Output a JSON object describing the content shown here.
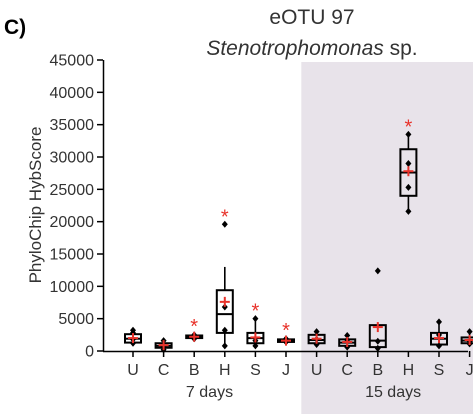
{
  "panel_label": "C)",
  "chart_data": {
    "type": "box",
    "title": "eOTU 97",
    "subtitle_italic": "Stenotrophomonas",
    "subtitle_rest": " sp.",
    "ylabel": "PhyloChip HybScore",
    "xlabel": "",
    "ylim": [
      0,
      45000
    ],
    "yticks": [
      0,
      5000,
      10000,
      15000,
      20000,
      25000,
      30000,
      35000,
      40000,
      45000
    ],
    "grid": false,
    "colors": {
      "box": "#000000",
      "median": "#000000",
      "mean_marker": "#e8322a",
      "significance": "#e8322a",
      "shaded_region": "#e8e3ea"
    },
    "groups": [
      {
        "label": "7 days",
        "shaded": false
      },
      {
        "label": "15 days",
        "shaded": true
      }
    ],
    "categories": [
      {
        "label": "U",
        "group": 0,
        "whisker_low": 1000,
        "q1": 1300,
        "median": 1900,
        "q3": 2600,
        "whisker_high": 3000,
        "mean": 2000,
        "points": [
          1200,
          1800,
          2800,
          3200
        ],
        "significant": false
      },
      {
        "label": "C",
        "group": 0,
        "whisker_low": 300,
        "q1": 500,
        "median": 800,
        "q3": 1200,
        "whisker_high": 1500,
        "mean": 900,
        "points": [
          200,
          700,
          1600
        ],
        "significant": false
      },
      {
        "label": "B",
        "group": 0,
        "whisker_low": 1900,
        "q1": 2000,
        "median": 2200,
        "q3": 2400,
        "whisker_high": 2600,
        "mean": 2200,
        "points": [
          1900,
          2500
        ],
        "significant": true
      },
      {
        "label": "H",
        "group": 0,
        "whisker_low": 800,
        "q1": 2800,
        "median": 5700,
        "q3": 9400,
        "whisker_high": 13000,
        "mean": 7600,
        "points": [
          800,
          3200,
          6800,
          19600
        ],
        "significant": true
      },
      {
        "label": "S",
        "group": 0,
        "whisker_low": 800,
        "q1": 1200,
        "median": 2000,
        "q3": 2800,
        "whisker_high": 5000,
        "mean": 2100,
        "points": [
          800,
          1600,
          5000
        ],
        "significant": true
      },
      {
        "label": "J",
        "group": 0,
        "whisker_low": 1200,
        "q1": 1400,
        "median": 1600,
        "q3": 1800,
        "whisker_high": 2000,
        "mean": 1600,
        "points": [
          1400,
          1900
        ],
        "significant": true
      },
      {
        "label": "U",
        "group": 1,
        "whisker_low": 900,
        "q1": 1200,
        "median": 1700,
        "q3": 2500,
        "whisker_high": 3000,
        "mean": 1900,
        "points": [
          1000,
          1800,
          3000
        ],
        "significant": false
      },
      {
        "label": "C",
        "group": 1,
        "whisker_low": 500,
        "q1": 800,
        "median": 1300,
        "q3": 1800,
        "whisker_high": 2500,
        "mean": 1400,
        "points": [
          600,
          1700,
          2400
        ],
        "significant": false
      },
      {
        "label": "B",
        "group": 1,
        "whisker_low": 300,
        "q1": 600,
        "median": 1600,
        "q3": 4000,
        "whisker_high": 4300,
        "mean": 3700,
        "points": [
          400,
          1500,
          12400
        ],
        "significant": false
      },
      {
        "label": "H",
        "group": 1,
        "whisker_low": 21500,
        "q1": 24000,
        "median": 27600,
        "q3": 31200,
        "whisker_high": 33500,
        "mean": 27800,
        "points": [
          21600,
          25300,
          29000,
          33500
        ],
        "significant": true
      },
      {
        "label": "S",
        "group": 1,
        "whisker_low": 700,
        "q1": 1000,
        "median": 1900,
        "q3": 2800,
        "whisker_high": 4500,
        "mean": 2000,
        "points": [
          800,
          2500,
          4500
        ],
        "significant": false
      },
      {
        "label": "J",
        "group": 1,
        "whisker_low": 900,
        "q1": 1200,
        "median": 1600,
        "q3": 2100,
        "whisker_high": 3000,
        "mean": 1700,
        "points": [
          1100,
          1500,
          3000
        ],
        "significant": false
      }
    ]
  }
}
